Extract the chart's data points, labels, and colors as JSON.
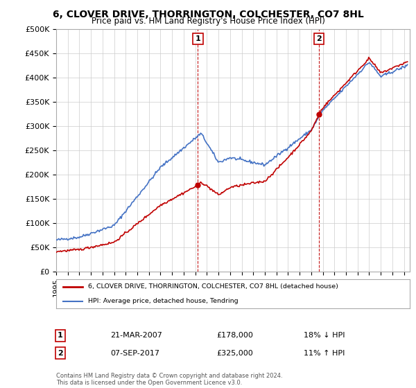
{
  "title": "6, CLOVER DRIVE, THORRINGTON, COLCHESTER, CO7 8HL",
  "subtitle": "Price paid vs. HM Land Registry's House Price Index (HPI)",
  "ylabel_ticks": [
    "£0",
    "£50K",
    "£100K",
    "£150K",
    "£200K",
    "£250K",
    "£300K",
    "£350K",
    "£400K",
    "£450K",
    "£500K"
  ],
  "ytick_values": [
    0,
    50000,
    100000,
    150000,
    200000,
    250000,
    300000,
    350000,
    400000,
    450000,
    500000
  ],
  "ylim": [
    0,
    500000
  ],
  "xlim_start": 1995.0,
  "xlim_end": 2025.5,
  "hpi_color": "#4472C4",
  "price_color": "#C00000",
  "marker1_date_x": 2007.22,
  "marker1_price": 178000,
  "marker2_date_x": 2017.68,
  "marker2_price": 325000,
  "legend_label1": "6, CLOVER DRIVE, THORRINGTON, COLCHESTER, CO7 8HL (detached house)",
  "legend_label2": "HPI: Average price, detached house, Tendring",
  "annotation1_date": "21-MAR-2007",
  "annotation1_price": "£178,000",
  "annotation1_hpi": "18% ↓ HPI",
  "annotation2_date": "07-SEP-2017",
  "annotation2_price": "£325,000",
  "annotation2_hpi": "11% ↑ HPI",
  "footer": "Contains HM Land Registry data © Crown copyright and database right 2024.\nThis data is licensed under the Open Government Licence v3.0.",
  "background_color": "#ffffff",
  "grid_color": "#cccccc"
}
